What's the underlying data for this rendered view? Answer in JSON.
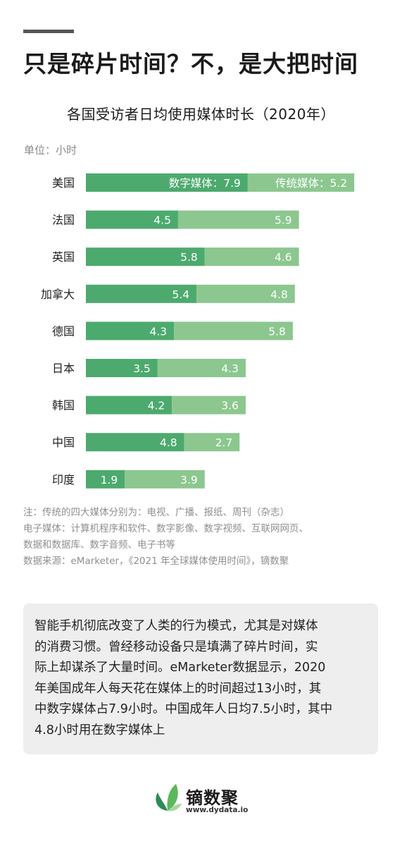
{
  "headline": "只是碎片时间？不，是大把时间",
  "unit": "单位：小时",
  "chart_data": {
    "type": "bar",
    "orientation": "horizontal",
    "stacked": true,
    "title": "各国受访者日均使用媒体时长（2020年）",
    "categories": [
      "美国",
      "法国",
      "英国",
      "加拿大",
      "德国",
      "日本",
      "韩国",
      "中国",
      "印度"
    ],
    "series": [
      {
        "name": "数字媒体",
        "values": [
          7.9,
          4.5,
          5.8,
          5.4,
          4.3,
          3.5,
          4.2,
          4.8,
          1.9
        ],
        "color": "#4caa6e"
      },
      {
        "name": "传统媒体",
        "values": [
          5.2,
          5.9,
          4.6,
          4.8,
          5.8,
          4.3,
          3.6,
          2.7,
          3.9
        ],
        "color": "#8cc78f"
      }
    ],
    "series_label_separator": "：",
    "grid": false,
    "legend": "inline-first-bar"
  },
  "notes": [
    "注：传统的四大媒体分别为：电视、广播、报纸、周刊（杂志）",
    "电子媒体：计算机程序和软件、数字影像、数字视频、互联网网页、",
    "数据和数据库、数字音频、电子书等",
    "数据来源：eMarketer，《2021 年全球媒体使用时间》，镝数聚"
  ],
  "summary_lines": [
    "智能手机彻底改变了人类的行为模式，尤其是对媒体",
    "的消费习惯。曾经移动设备只是填满了碎片时间，实",
    "际上却谋杀了大量时间。eMarketer数据显示，2020",
    "年美国成年人每天花在媒体上的时间超过13小时，其",
    "中数字媒体占7.9小时。中国成年人日均7.5小时，其中",
    "4.8小时用在数字媒体上"
  ],
  "logo": {
    "name": "镝数聚",
    "url": "www.dydata.io",
    "icon": "leaf-logo-icon",
    "colors": [
      "#2e8b57",
      "#5cb85c",
      "#a8d5a2"
    ]
  }
}
